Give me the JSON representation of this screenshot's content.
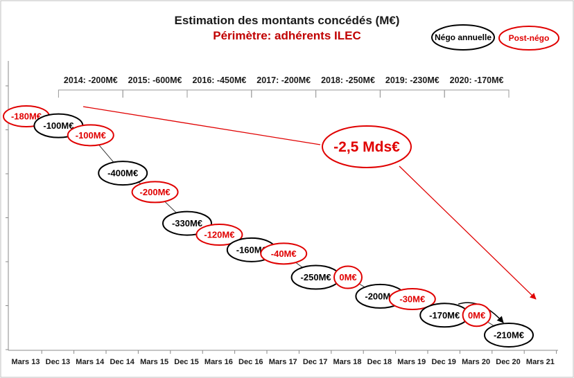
{
  "chart_data": {
    "type": "line",
    "title": "Estimation des montants concédés (M€)",
    "subtitle": "Périmètre: adhérents ILEC",
    "legend": {
      "placement": "top-right",
      "items": [
        {
          "label": "Négo annuelle",
          "color": "#000000"
        },
        {
          "label": "Post-négo",
          "color": "#e00000"
        }
      ]
    },
    "categories": [
      "Mars 13",
      "Dec 13",
      "Mars 14",
      "Dec 14",
      "Mars 15",
      "Dec 15",
      "Mars 16",
      "Dec 16",
      "Mars 17",
      "Dec 17",
      "Mars 18",
      "Dec 18",
      "Mars 19",
      "Dec 19",
      "Mars 20",
      "Dec 20",
      "Mars 21"
    ],
    "points": [
      {
        "label": "-180M€",
        "kind": "post",
        "date": "Mars 13",
        "value": -180,
        "cumulative": -180
      },
      {
        "label": "-100M€",
        "kind": "nego",
        "date": "Dec 13",
        "value": -100,
        "cumulative": -280
      },
      {
        "label": "-100M€",
        "kind": "post",
        "date": "Mars 14",
        "value": -100,
        "cumulative": -380
      },
      {
        "label": "-400M€",
        "kind": "nego",
        "date": "Dec 14",
        "value": -400,
        "cumulative": -780
      },
      {
        "label": "-200M€",
        "kind": "post",
        "date": "Mars 15",
        "value": -200,
        "cumulative": -980
      },
      {
        "label": "-330M€",
        "kind": "nego",
        "date": "Dec 15",
        "value": -330,
        "cumulative": -1310
      },
      {
        "label": "-120M€",
        "kind": "post",
        "date": "Mars 16",
        "value": -120,
        "cumulative": -1430
      },
      {
        "label": "-160M€",
        "kind": "nego",
        "date": "Dec 16",
        "value": -160,
        "cumulative": -1590
      },
      {
        "label": "-40M€",
        "kind": "post",
        "date": "Mars 17",
        "value": -40,
        "cumulative": -1630
      },
      {
        "label": "-250M€",
        "kind": "nego",
        "date": "Dec 17",
        "value": -250,
        "cumulative": -1880
      },
      {
        "label": "0M€",
        "kind": "post",
        "date": "Mars 18",
        "value": 0,
        "cumulative": -1880
      },
      {
        "label": "-200M€",
        "kind": "nego",
        "date": "Dec 18",
        "value": -200,
        "cumulative": -2080
      },
      {
        "label": "-30M€",
        "kind": "post",
        "date": "Mars 19",
        "value": -30,
        "cumulative": -2110
      },
      {
        "label": "-170M€",
        "kind": "nego",
        "date": "Dec 19",
        "value": -170,
        "cumulative": -2280
      },
      {
        "label": "0M€",
        "kind": "post",
        "date": "Mars 20",
        "value": 0,
        "cumulative": -2280
      },
      {
        "label": "-210M€",
        "kind": "nego",
        "date": "Dec 20",
        "value": -210,
        "cumulative": -2490
      }
    ],
    "periods": [
      {
        "label": "2014: -200M€",
        "from": "Dec 13",
        "to": "Dec 14"
      },
      {
        "label": "2015: -600M€",
        "from": "Dec 14",
        "to": "Dec 15"
      },
      {
        "label": "2016: -450M€",
        "from": "Dec 15",
        "to": "Dec 16"
      },
      {
        "label": "2017: -200M€",
        "from": "Dec 16",
        "to": "Dec 17"
      },
      {
        "label": "2018: -250M€",
        "from": "Dec 17",
        "to": "Dec 18"
      },
      {
        "label": "2019: -230M€",
        "from": "Dec 18",
        "to": "Dec 19"
      },
      {
        "label": "2020: -170M€",
        "from": "Dec 19",
        "to": "Dec 20"
      }
    ],
    "total_annotation": "-2,5 Mds€",
    "ylim": [
      -2600,
      0
    ],
    "grid": false
  }
}
